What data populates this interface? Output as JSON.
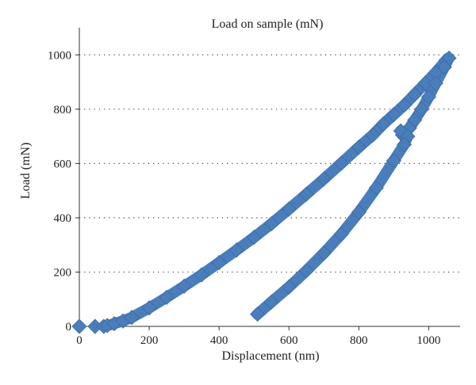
{
  "chart_data": {
    "type": "scatter",
    "title": "Load on sample (mN)",
    "xlabel": "Displacement (nm)",
    "ylabel": "Load (mN)",
    "xlim": [
      0,
      1090
    ],
    "ylim": [
      0,
      1100
    ],
    "xticks": [
      0,
      200,
      400,
      600,
      800,
      1000
    ],
    "yticks": [
      0,
      200,
      400,
      600,
      800,
      1000
    ],
    "grid": "horizontal dotted",
    "legend": "none",
    "series": [
      {
        "name": "",
        "color": "#4a7ebb",
        "marker": "diamond",
        "points": [
          [
            0,
            0
          ],
          [
            45,
            0
          ],
          [
            70,
            0
          ],
          [
            80,
            3
          ],
          [
            100,
            10
          ],
          [
            125,
            20
          ],
          [
            150,
            33
          ],
          [
            200,
            68
          ],
          [
            250,
            107
          ],
          [
            300,
            148
          ],
          [
            350,
            190
          ],
          [
            400,
            235
          ],
          [
            450,
            281
          ],
          [
            500,
            328
          ],
          [
            550,
            378
          ],
          [
            600,
            432
          ],
          [
            650,
            487
          ],
          [
            700,
            543
          ],
          [
            750,
            601
          ],
          [
            800,
            660
          ],
          [
            840,
            705
          ],
          [
            870,
            745
          ],
          [
            900,
            780
          ],
          [
            930,
            815
          ],
          [
            960,
            855
          ],
          [
            990,
            895
          ],
          [
            1020,
            935
          ],
          [
            1050,
            980
          ],
          [
            1058,
            988
          ],
          [
            1045,
            955
          ],
          [
            1020,
            895
          ],
          [
            1000,
            845
          ],
          [
            980,
            800
          ],
          [
            960,
            760
          ],
          [
            945,
            730
          ],
          [
            925,
            705
          ],
          [
            920,
            720
          ],
          [
            940,
            700
          ],
          [
            930,
            670
          ],
          [
            900,
            610
          ],
          [
            850,
            510
          ],
          [
            800,
            420
          ],
          [
            750,
            340
          ],
          [
            700,
            270
          ],
          [
            650,
            205
          ],
          [
            600,
            145
          ],
          [
            550,
            90
          ],
          [
            510,
            45
          ]
        ]
      }
    ]
  }
}
